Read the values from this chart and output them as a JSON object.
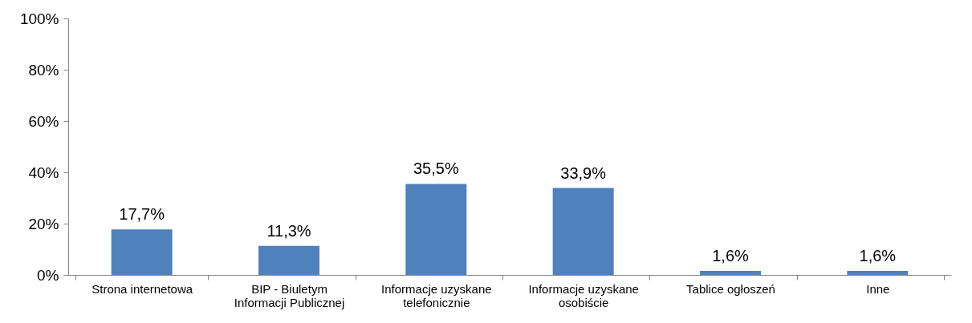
{
  "chart_data": {
    "type": "bar",
    "categories": [
      "Strona internetowa",
      "BIP - Biuletym\nInformacji Publicznej",
      "Informacje uzyskane\ntelefonicznie",
      "Informacje uzyskane\nosobiście",
      "Tablice ogłoszeń",
      "Inne"
    ],
    "values": [
      17.7,
      11.3,
      35.5,
      33.9,
      1.6,
      1.6
    ],
    "value_labels": [
      "17,7%",
      "11,3%",
      "35,5%",
      "33,9%",
      "1,6%",
      "1,6%"
    ],
    "color": "#4f81bd",
    "ylim": [
      0,
      100
    ],
    "yticks": [
      {
        "value": 0,
        "label": "0%"
      },
      {
        "value": 20,
        "label": "20%"
      },
      {
        "value": 40,
        "label": "40%"
      },
      {
        "value": 60,
        "label": "60%"
      },
      {
        "value": 80,
        "label": "80%"
      },
      {
        "value": 100,
        "label": "100%"
      }
    ],
    "grid": false
  }
}
